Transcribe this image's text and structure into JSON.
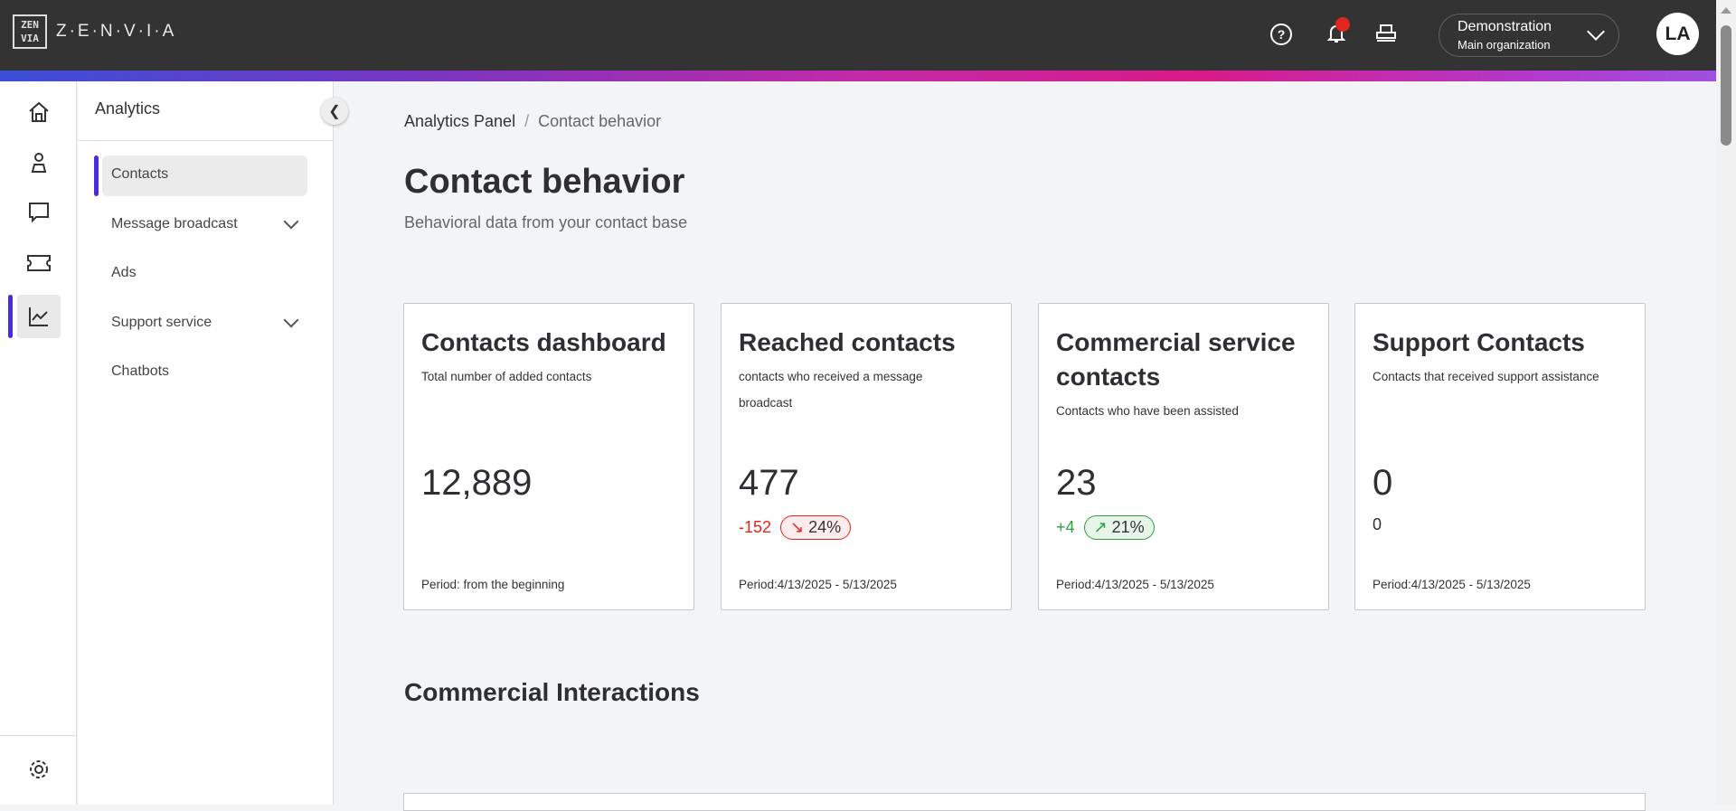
{
  "header": {
    "logo_mark": "ZEN VIA",
    "logo_text": "Z·E·N·V·I·A",
    "help_icon": "?",
    "org_name": "Demonstration",
    "org_sub": "Main organization",
    "avatar": "LA"
  },
  "rail": [
    "home-icon",
    "contacts-icon",
    "chat-icon",
    "ticket-icon",
    "analytics-icon",
    "settings-icon"
  ],
  "panel": {
    "title": "Analytics",
    "items": [
      {
        "label": "Contacts",
        "active": true
      },
      {
        "label": "Message broadcast",
        "expandable": true
      },
      {
        "label": "Ads"
      },
      {
        "label": "Support service",
        "expandable": true
      },
      {
        "label": "Chatbots"
      }
    ]
  },
  "breadcrumb": {
    "parent": "Analytics Panel",
    "sep": "/",
    "current": "Contact behavior"
  },
  "page": {
    "title": "Contact behavior",
    "subtitle": "Behavioral data from your contact base",
    "section": "Commercial Interactions"
  },
  "cards": [
    {
      "title": "Contacts dashboard",
      "desc": "Total number of added contacts",
      "value": "12,889",
      "period": "Period: from the beginning"
    },
    {
      "title": "Reached contacts",
      "desc": "contacts who received a message broadcast",
      "value": "477",
      "delta": "-152",
      "pct": "24%",
      "trend": "down",
      "color": "#e0261d",
      "period": "Period:4/13/2025 - 5/13/2025"
    },
    {
      "title": "Commercial service contacts",
      "desc": "Contacts who have been assisted",
      "value": "23",
      "delta": "+4",
      "pct": "21%",
      "trend": "up",
      "color": "#2ea043",
      "period": "Period:4/13/2025 - 5/13/2025"
    },
    {
      "title": "Support Contacts",
      "desc": "Contacts that received support assistance",
      "value": "0",
      "delta": "0",
      "period": "Period:4/13/2025 - 5/13/2025"
    }
  ]
}
